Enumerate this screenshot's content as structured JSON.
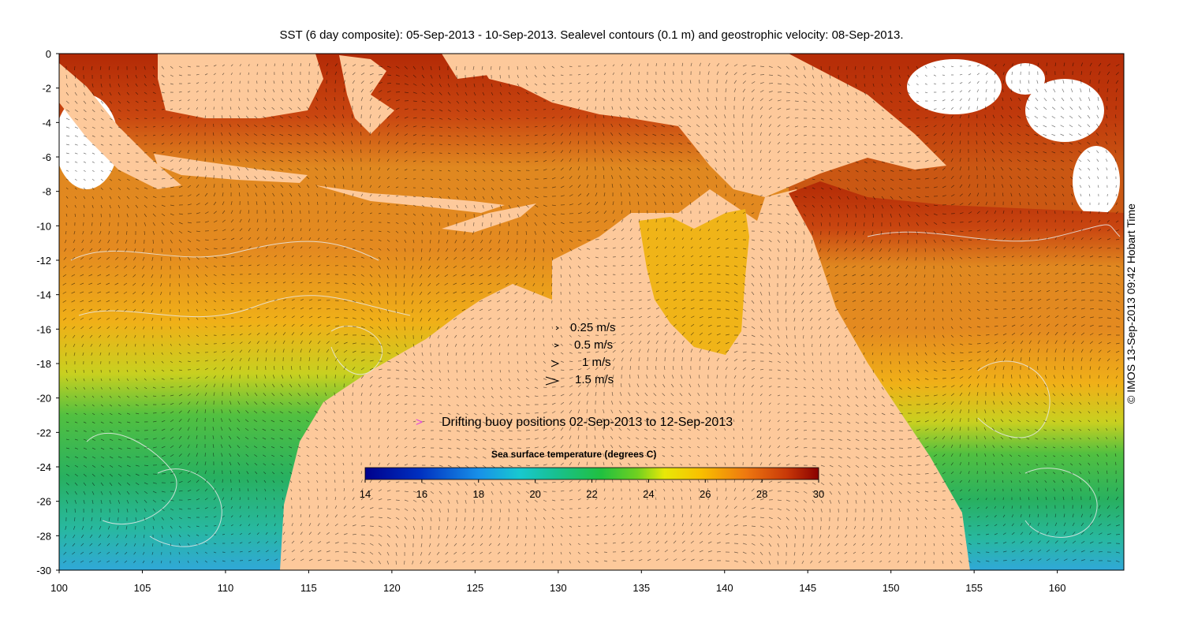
{
  "title": "SST (6 day composite): 05-Sep-2013 - 10-Sep-2013. Sealevel contours (0.1 m) and geostrophic velocity: 08-Sep-2013.",
  "credit": "© IMOS 13-Sep-2013 09:42 Hobart Time",
  "velocity_key": [
    {
      "label": "0.25 m/s",
      "speed": 0.25
    },
    {
      "label": "0.5 m/s",
      "speed": 0.5
    },
    {
      "label": "1 m/s",
      "speed": 1
    },
    {
      "label": "1.5 m/s",
      "speed": 1.5
    }
  ],
  "buoy_legend": {
    "symbol": ">",
    "label": "Drifting buoy positions 02-Sep-2013 to 12-Sep-2013",
    "color": "#e040e0"
  },
  "colorbar": {
    "title": "Sea surface temperature (degrees C)",
    "min": 14,
    "max": 30,
    "ticks": [
      "14",
      "16",
      "18",
      "20",
      "22",
      "24",
      "26",
      "28",
      "30"
    ]
  },
  "axes": {
    "x_ticks": [
      "100",
      "105",
      "110",
      "115",
      "120",
      "125",
      "130",
      "135",
      "140",
      "145",
      "150",
      "155",
      "160"
    ],
    "y_ticks": [
      "0",
      "-2",
      "-4",
      "-6",
      "-8",
      "-10",
      "-12",
      "-14",
      "-16",
      "-18",
      "-20",
      "-22",
      "-24",
      "-26",
      "-28",
      "-30"
    ],
    "x_range": [
      100,
      164
    ],
    "y_range": [
      -30,
      0
    ]
  },
  "colors": {
    "land": "#fdc99b",
    "cloud": "#ffffff",
    "contour": "#e8e8e8",
    "vector": "#000000"
  }
}
